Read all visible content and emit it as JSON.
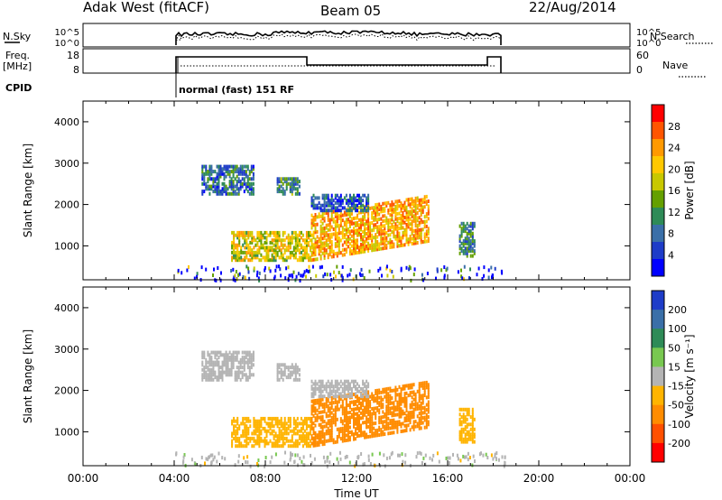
{
  "header": {
    "station": "Adak West (fitACF)",
    "beam": "Beam 05",
    "date": "22/Aug/2014"
  },
  "panels": {
    "noise": {
      "left_label": "N.Sky",
      "right_label": "N.Search",
      "left_ticks": [
        "10^5",
        "10^0"
      ],
      "right_ticks": [
        "10^5",
        "10^0"
      ]
    },
    "freq": {
      "left_label_1": "Freq.",
      "left_label_2": "[MHz]",
      "right_label": "Nave",
      "left_ticks": [
        "18",
        "8"
      ],
      "right_ticks": [
        "60",
        "0"
      ]
    },
    "cpid": {
      "label": "CPID",
      "mode_text": "normal (fast) 151 RF"
    }
  },
  "chart_data": [
    {
      "type": "heatmap",
      "title": "",
      "ylabel": "Slant Range [km]",
      "xlabel": "",
      "x_range_hours": [
        0,
        24
      ],
      "ylim": [
        180,
        4500
      ],
      "y_ticks": [
        "1000",
        "2000",
        "3000",
        "4000"
      ],
      "colorbar": {
        "label": "Power [dB]",
        "ticks": [
          "28",
          "24",
          "20",
          "16",
          "12",
          "8",
          "4"
        ],
        "colors": [
          "#ff0000",
          "#ff5500",
          "#ff9900",
          "#ffc800",
          "#c8c800",
          "#64a000",
          "#2e8b57",
          "#3a6fa8",
          "#1e3cc8",
          "#0000ff"
        ]
      },
      "features": [
        {
          "t0": 5.2,
          "t1": 7.5,
          "r0": 2300,
          "r1": 3000,
          "value": 8
        },
        {
          "t0": 8.5,
          "t1": 9.5,
          "r0": 2300,
          "r1": 2700,
          "value": 10
        },
        {
          "t0": 6.5,
          "t1": 10.0,
          "r0": 700,
          "r1": 1400,
          "value": 18
        },
        {
          "t0": 10.0,
          "t1": 15.2,
          "r0": 700,
          "r1": 1800,
          "value": 22
        },
        {
          "t0": 10.0,
          "t1": 12.5,
          "r0": 1900,
          "r1": 2300,
          "value": 6
        },
        {
          "t0": 16.5,
          "t1": 17.2,
          "r0": 800,
          "r1": 1600,
          "value": 10
        }
      ]
    },
    {
      "type": "heatmap",
      "title": "",
      "ylabel": "Slant Range [km]",
      "xlabel": "Time UT",
      "x_range_hours": [
        0,
        24
      ],
      "ylim": [
        180,
        4500
      ],
      "y_ticks": [
        "1000",
        "2000",
        "3000",
        "4000"
      ],
      "x_ticks": [
        "00:00",
        "04:00",
        "08:00",
        "12:00",
        "16:00",
        "20:00",
        "00:00"
      ],
      "colorbar": {
        "label": "Velocity [m s⁻¹]",
        "ticks": [
          "200",
          "100",
          "50",
          "15",
          "-15",
          "-50",
          "-100",
          "-200"
        ],
        "colors": [
          "#1e3cc8",
          "#3a6fa8",
          "#2e8b57",
          "#78c850",
          "#b4b4b4",
          "#ffb400",
          "#ff8c00",
          "#ff5000",
          "#ff0000"
        ]
      },
      "features": [
        {
          "t0": 5.2,
          "t1": 7.5,
          "r0": 2300,
          "r1": 3000,
          "value": 0
        },
        {
          "t0": 8.5,
          "t1": 9.5,
          "r0": 2300,
          "r1": 2700,
          "value": 0
        },
        {
          "t0": 6.5,
          "t1": 10.0,
          "r0": 700,
          "r1": 1400,
          "value": -40
        },
        {
          "t0": 10.0,
          "t1": 15.2,
          "r0": 700,
          "r1": 1800,
          "value": -60
        },
        {
          "t0": 10.0,
          "t1": 12.5,
          "r0": 1900,
          "r1": 2300,
          "value": 0
        },
        {
          "t0": 16.5,
          "t1": 17.2,
          "r0": 800,
          "r1": 1600,
          "value": -40
        }
      ]
    }
  ]
}
